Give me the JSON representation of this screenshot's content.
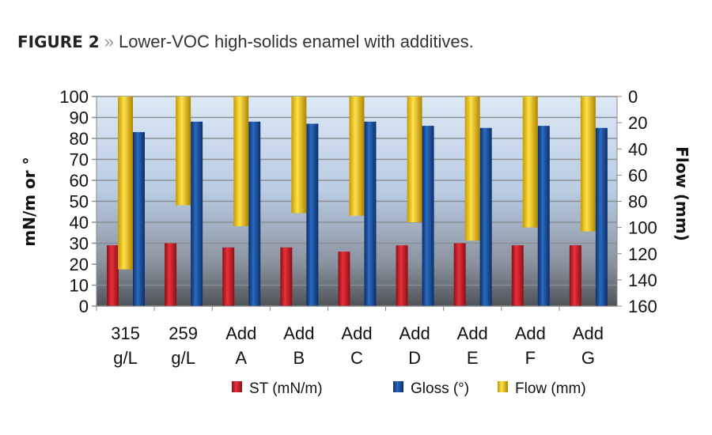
{
  "figure_label": "FIGURE 2",
  "separator": "»",
  "caption": "Lower-VOC high-solids enamel with additives.",
  "chart_data": {
    "type": "bar",
    "categories": [
      [
        "315",
        "g/L"
      ],
      [
        "259",
        "g/L"
      ],
      [
        "Add",
        "A"
      ],
      [
        "Add",
        "B"
      ],
      [
        "Add",
        "C"
      ],
      [
        "Add",
        "D"
      ],
      [
        "Add",
        "E"
      ],
      [
        "Add",
        "F"
      ],
      [
        "Add",
        "G"
      ]
    ],
    "series": [
      {
        "name": "ST (mN/m)",
        "axis": "left",
        "color": "#d0202a",
        "values": [
          29,
          30,
          28,
          28,
          26,
          29,
          30,
          29,
          29
        ]
      },
      {
        "name": "Gloss (°)",
        "axis": "left",
        "color": "#1a56a8",
        "values": [
          83,
          88,
          88,
          87,
          88,
          86,
          85,
          86,
          85
        ]
      },
      {
        "name": "Flow (mm)",
        "axis": "right",
        "color": "#f2c500",
        "values": [
          132,
          83,
          99,
          89,
          91,
          96,
          110,
          100,
          103
        ]
      }
    ],
    "ylabel": "mN/m or °",
    "y2label": "Flow (mm)",
    "ylim": [
      0,
      100
    ],
    "y2lim": [
      0,
      160
    ],
    "y2_inverted": true,
    "yticks": [
      0,
      10,
      20,
      30,
      40,
      50,
      60,
      70,
      80,
      90,
      100
    ],
    "y2ticks": [
      0,
      20,
      40,
      60,
      80,
      100,
      120,
      140,
      160
    ],
    "grid": true,
    "legend_placement": "bottom"
  }
}
